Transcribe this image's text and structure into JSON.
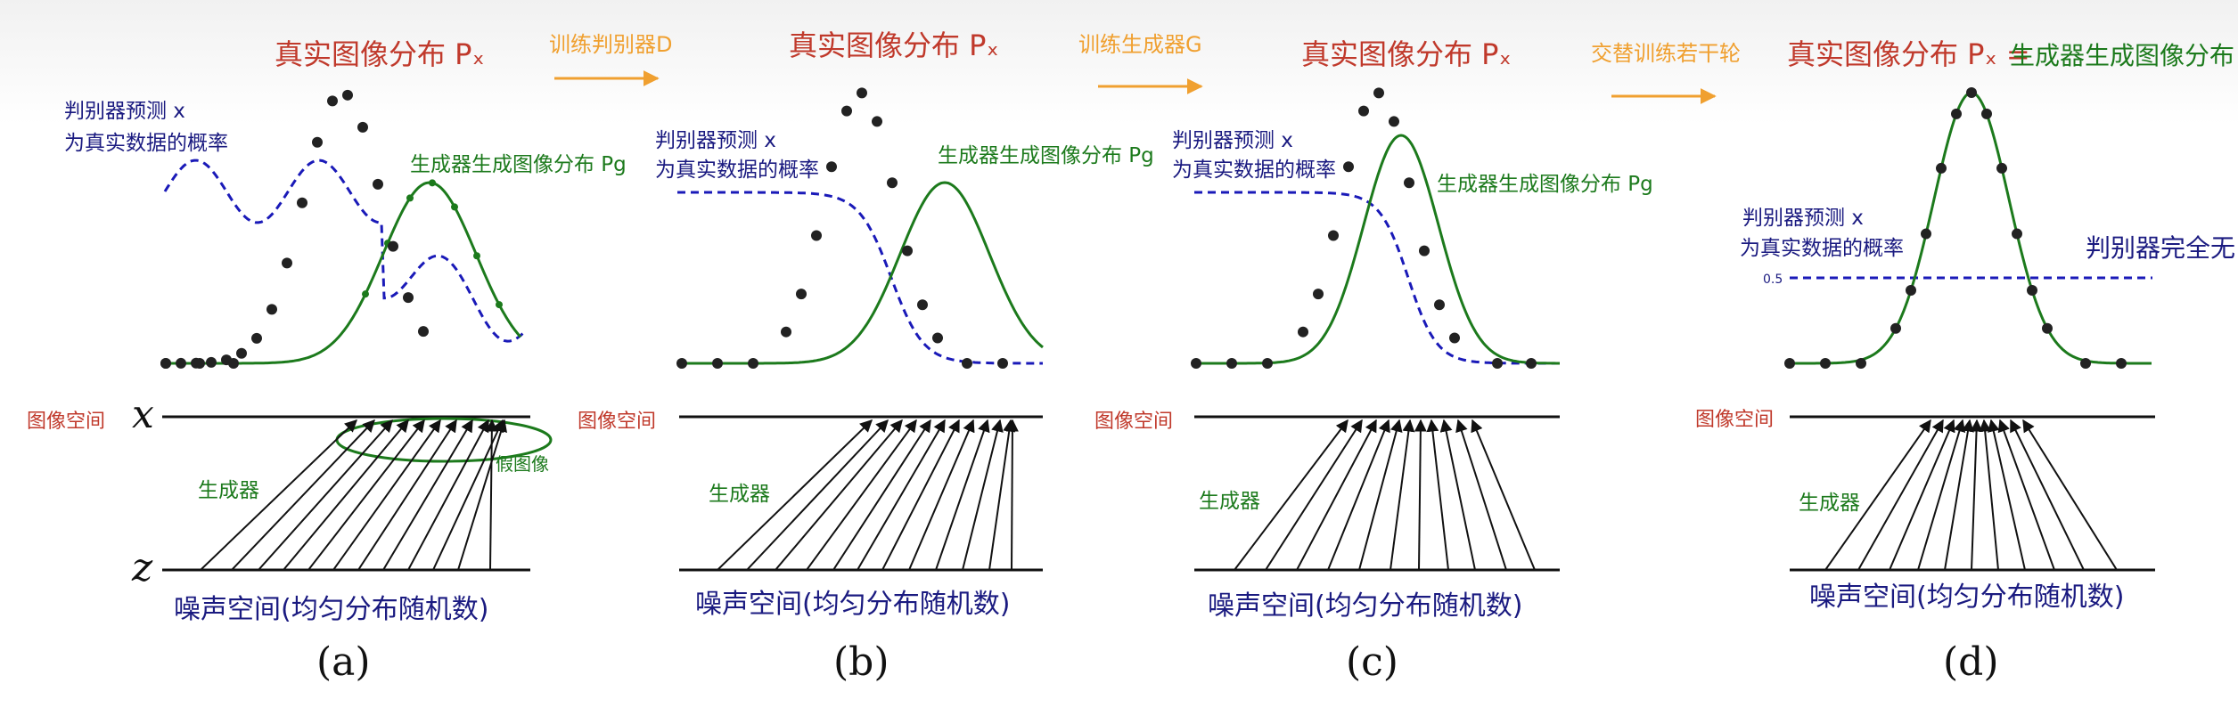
{
  "colors": {
    "real": "#222222",
    "generator": "#1c7a1c",
    "discriminator": "#1a1ab8",
    "title_red": "#c0392b",
    "step_orange": "#f0a030",
    "label_red": "#c0392b",
    "label_green": "#1c7a1c",
    "label_blue": "#1a1a80"
  },
  "panels": [
    {
      "id": "a",
      "title": "真实图像分布 Pₓ",
      "title_gen": "",
      "disc_label": [
        "判别器预测 x",
        "为真实数据的概率"
      ],
      "gen_label": "生成器生成图像分布 Pg",
      "image_space": "图像空间",
      "generator": "生成器",
      "noise_space": "噪声空间(均匀分布随机数)",
      "fake_label": "假图像",
      "disc_half_label": "",
      "half_value": "",
      "caption": "(a)"
    },
    {
      "id": "b",
      "title": "真实图像分布 Pₓ",
      "title_gen": "",
      "disc_label": [
        "判别器预测 x",
        "为真实数据的概率"
      ],
      "gen_label": "生成器生成图像分布 Pg",
      "image_space": "图像空间",
      "generator": "生成器",
      "noise_space": "噪声空间(均匀分布随机数)",
      "fake_label": "",
      "disc_half_label": "",
      "half_value": "",
      "caption": "(b)"
    },
    {
      "id": "c",
      "title": "真实图像分布 Pₓ",
      "title_gen": "",
      "disc_label": [
        "判别器预测 x",
        "为真实数据的概率"
      ],
      "gen_label": "生成器生成图像分布 Pg",
      "image_space": "图像空间",
      "generator": "生成器",
      "noise_space": "噪声空间(均匀分布随机数)",
      "fake_label": "",
      "disc_half_label": "",
      "half_value": "",
      "caption": "(c)"
    },
    {
      "id": "d",
      "title": "真实图像分布 Pₓ =",
      "title_gen": "生成器生成图像分布 Pg",
      "disc_label": [
        "判别器预测 x",
        "为真实数据的概率"
      ],
      "gen_label": "",
      "image_space": "图像空间",
      "generator": "生成器",
      "noise_space": "噪声空间(均匀分布随机数)",
      "fake_label": "",
      "disc_half_label": "判别器完全无",
      "half_value": "0.5",
      "caption": "(d)"
    }
  ],
  "steps": [
    "训练判别器D",
    "训练生成器G",
    "交替训练若干轮"
  ],
  "axis_x": "x",
  "axis_z": "z"
}
